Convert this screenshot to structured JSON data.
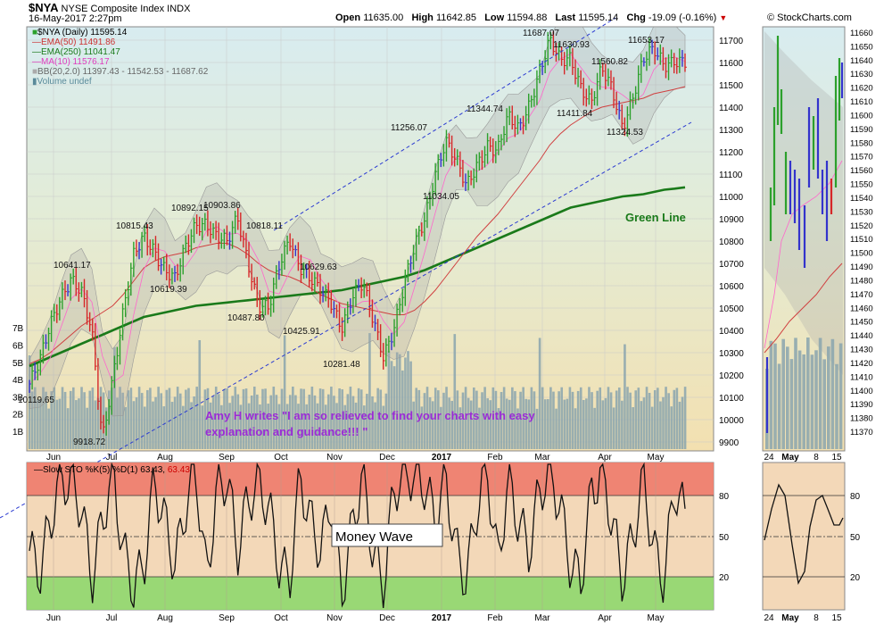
{
  "header": {
    "symbol": "$NYA",
    "name": "NYSE Composite Index",
    "exchange": "INDX",
    "date_time": "16-May-2017 2:27pm",
    "open_label": "Open",
    "open": "11635.00",
    "high_label": "High",
    "high": "11642.85",
    "low_label": "Low",
    "low": "11594.88",
    "last_label": "Last",
    "last": "11595.14",
    "chg_label": "Chg",
    "chg": "-19.09 (-0.16%)",
    "source": "© StockCharts.com"
  },
  "legend": {
    "price": "$NYA (Daily) 11595.14",
    "ema50": "EMA(50) 11491.86",
    "ema250": "EMA(250) 11041.47",
    "ma10": "MA(10) 11576.17",
    "bb": "BB(20,2.0) 11397.43 - 11542.53 - 11687.62",
    "volume": "Volume undef"
  },
  "colors": {
    "up": "#2ca02c",
    "down": "#d62728",
    "neutral": "#3333cc",
    "ema50": "#d04040",
    "ema250": "#1a7a1a",
    "ma10": "#ff44cc",
    "bb_fill": "#a8a8a8",
    "volume": "#8aa5ae",
    "trend": "#2b3bd1",
    "annotation": "#9b2bd6",
    "green_line_label": "#1a7a1a"
  },
  "annotations": {
    "green_line": "Green Line",
    "quote_line1": "Amy H writes \"I am so relieved to find your charts with easy",
    "quote_line2": "explanation and guidance!!! \"",
    "money_wave": "Money Wave"
  },
  "sto_legend": {
    "label": "Slow STO %K(5) %D(1) 63.43,",
    "value": "63.43"
  },
  "chart_data": [
    {
      "type": "line",
      "title": "$NYA (Daily)",
      "y_range": [
        9860,
        11760
      ],
      "y_ticks": [
        9900,
        10000,
        10100,
        10200,
        10300,
        10400,
        10500,
        10600,
        10700,
        10800,
        10900,
        11000,
        11100,
        11200,
        11300,
        11400,
        11500,
        11600,
        11700
      ],
      "x_labels": [
        "Jun",
        "Jul",
        "Aug",
        "Sep",
        "Oct",
        "Nov",
        "Dec",
        "2017",
        "Feb",
        "Mar",
        "Apr",
        "May"
      ],
      "volume_ticks": [
        "1B",
        "2B",
        "3B",
        "4B",
        "5B",
        "6B",
        "7B"
      ],
      "price_labels": [
        {
          "text": "10119.65",
          "value": 10119.65
        },
        {
          "text": "10641.17",
          "value": 10641.17
        },
        {
          "text": "9918.72",
          "value": 9918.72
        },
        {
          "text": "10815.43",
          "value": 10815.43
        },
        {
          "text": "10619.39",
          "value": 10619.39
        },
        {
          "text": "10892.15",
          "value": 10892.15
        },
        {
          "text": "10903.86",
          "value": 10903.86
        },
        {
          "text": "10487.80",
          "value": 10487.8
        },
        {
          "text": "10818.11",
          "value": 10818.11
        },
        {
          "text": "10629.63",
          "value": 10629.63
        },
        {
          "text": "10425.91",
          "value": 10425.91
        },
        {
          "text": "10281.48",
          "value": 10281.48
        },
        {
          "text": "11256.07",
          "value": 11256.07
        },
        {
          "text": "11034.05",
          "value": 11034.05
        },
        {
          "text": "11344.74",
          "value": 11344.74
        },
        {
          "text": "11687.07",
          "value": 11687.07
        },
        {
          "text": "11630.93",
          "value": 11630.93
        },
        {
          "text": "11411.84",
          "value": 11411.84
        },
        {
          "text": "11560.82",
          "value": 11560.82
        },
        {
          "text": "11324.53",
          "value": 11324.53
        },
        {
          "text": "11653.17",
          "value": 11653.17
        }
      ],
      "series": [
        {
          "name": "$NYA (Daily)",
          "values": [
            10160,
            10250,
            10420,
            10560,
            10641,
            10560,
            10380,
            9918,
            10200,
            10480,
            10720,
            10815,
            10770,
            10680,
            10620,
            10760,
            10880,
            10892,
            10820,
            10780,
            10904,
            10720,
            10520,
            10488,
            10680,
            10818,
            10700,
            10630,
            10560,
            10520,
            10426,
            10560,
            10600,
            10440,
            10290,
            10420,
            10600,
            10760,
            10900,
            11120,
            11256,
            11150,
            11034,
            11150,
            11240,
            11200,
            11345,
            11300,
            11420,
            11560,
            11687,
            11600,
            11630,
            11500,
            11412,
            11560,
            11480,
            11325,
            11450,
            11600,
            11653,
            11600,
            11620,
            11595
          ]
        },
        {
          "name": "EMA(50)",
          "values": [
            10250,
            10270,
            10300,
            10340,
            10380,
            10420,
            10450,
            10480,
            10510,
            10560,
            10620,
            10680,
            10710,
            10730,
            10740,
            10750,
            10770,
            10780,
            10790,
            10790,
            10770,
            10740,
            10700,
            10670,
            10650,
            10640,
            10620,
            10590,
            10560,
            10540,
            10520,
            10510,
            10500,
            10490,
            10480,
            10470,
            10470,
            10490,
            10530,
            10580,
            10640,
            10700,
            10760,
            10820,
            10870,
            10920,
            10980,
            11040,
            11100,
            11160,
            11230,
            11280,
            11320,
            11350,
            11380,
            11400,
            11410,
            11420,
            11430,
            11440,
            11460,
            11470,
            11480,
            11492
          ]
        },
        {
          "name": "EMA(250)",
          "values": [
            10240,
            10260,
            10280,
            10300,
            10320,
            10340,
            10360,
            10380,
            10400,
            10420,
            10440,
            10460,
            10470,
            10480,
            10490,
            10500,
            10510,
            10515,
            10520,
            10525,
            10530,
            10535,
            10540,
            10545,
            10550,
            10555,
            10560,
            10565,
            10570,
            10575,
            10580,
            10590,
            10600,
            10610,
            10620,
            10630,
            10640,
            10655,
            10670,
            10690,
            10710,
            10730,
            10750,
            10770,
            10790,
            10810,
            10830,
            10850,
            10870,
            10890,
            10910,
            10930,
            10950,
            10960,
            10970,
            10980,
            10990,
            11000,
            11005,
            11010,
            11020,
            11030,
            11035,
            11041
          ]
        }
      ]
    },
    {
      "type": "line",
      "title": "Slow STO %K(5) %D(1)",
      "y_range": [
        0,
        100
      ],
      "y_ticks": [
        20,
        50,
        80
      ],
      "x_labels": [
        "Jun",
        "Jul",
        "Aug",
        "Sep",
        "Oct",
        "Nov",
        "Dec",
        "2017",
        "Feb",
        "Mar",
        "Apr",
        "May"
      ],
      "series": [
        {
          "name": "%K(5)",
          "values": [
            40,
            25,
            60,
            90,
            85,
            70,
            20,
            60,
            95,
            40,
            15,
            30,
            88,
            60,
            30,
            70,
            95,
            20,
            80,
            90,
            40,
            75,
            85,
            70,
            30,
            20,
            90,
            60,
            40,
            75,
            10,
            55,
            92,
            40,
            15,
            80,
            95,
            90,
            85,
            60,
            90,
            40,
            20,
            70,
            95,
            30,
            88,
            60,
            40,
            80,
            95,
            70,
            30,
            20,
            80,
            95,
            60,
            20,
            50,
            90,
            40,
            20,
            85,
            63
          ]
        }
      ]
    }
  ],
  "side_panel": {
    "y_ticks": [
      "11370",
      "11380",
      "11390",
      "11400",
      "11410",
      "11420",
      "11430",
      "11440",
      "11450",
      "11460",
      "11470",
      "11480",
      "11490",
      "11500",
      "11510",
      "11520",
      "11530",
      "11540",
      "11550",
      "11560",
      "11570",
      "11580",
      "11590",
      "11600",
      "11610",
      "11620",
      "11630",
      "11640",
      "11650",
      "11660"
    ],
    "x_labels": [
      "24",
      "May",
      "8",
      "15"
    ],
    "sto_ticks": [
      "20",
      "50",
      "80"
    ]
  }
}
